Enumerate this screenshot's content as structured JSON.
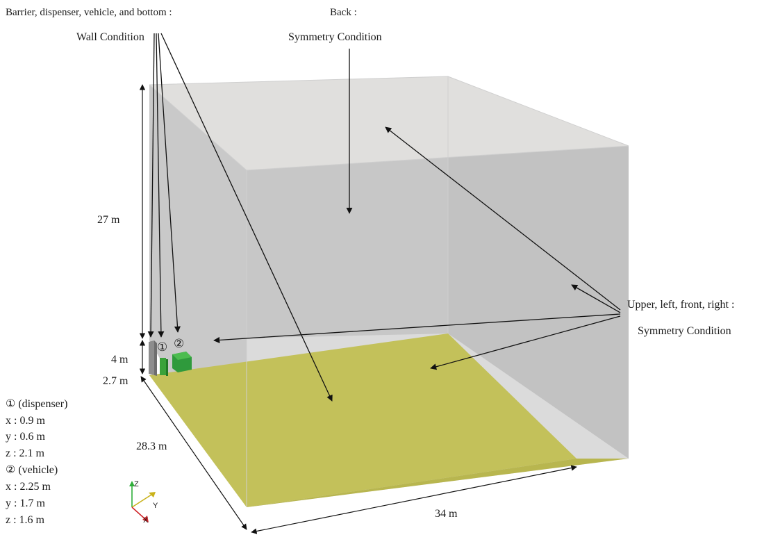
{
  "labels": {
    "wall_title": "Barrier, dispenser, vehicle, and bottom :",
    "wall_condition": "Wall Condition",
    "back_title": "Back :",
    "back_condition": "Symmetry Condition",
    "sides_title": "Upper, left, front, right :",
    "sides_condition": "Symmetry Condition"
  },
  "dimensions": {
    "height": "27 m",
    "barrier_height": "4 m",
    "barrier_offset": "2.7 m",
    "depth": "28.3 m",
    "width": "34 m"
  },
  "markers": {
    "dispenser": "①",
    "vehicle": "②"
  },
  "legend": {
    "dispenser_title": "① (dispenser)",
    "dispenser_x": "x : 0.9 m",
    "dispenser_y": "y : 0.6 m",
    "dispenser_z": "z : 2.1 m",
    "vehicle_title": "② (vehicle)",
    "vehicle_x": "x : 2.25 m",
    "vehicle_y": "y : 1.7 m",
    "vehicle_z": "z : 1.6 m"
  },
  "axes": {
    "z_label": "Z",
    "y_label": "Y",
    "x_label": "X",
    "z_color": "#2fae3a",
    "y_color": "#c9b21a",
    "x_color": "#d0262b"
  },
  "colors": {
    "floor": "#c3c15a",
    "dispenser": "#3aa23a",
    "vehicle": "#2f9a3c",
    "barrier": "#8d8d8d"
  }
}
